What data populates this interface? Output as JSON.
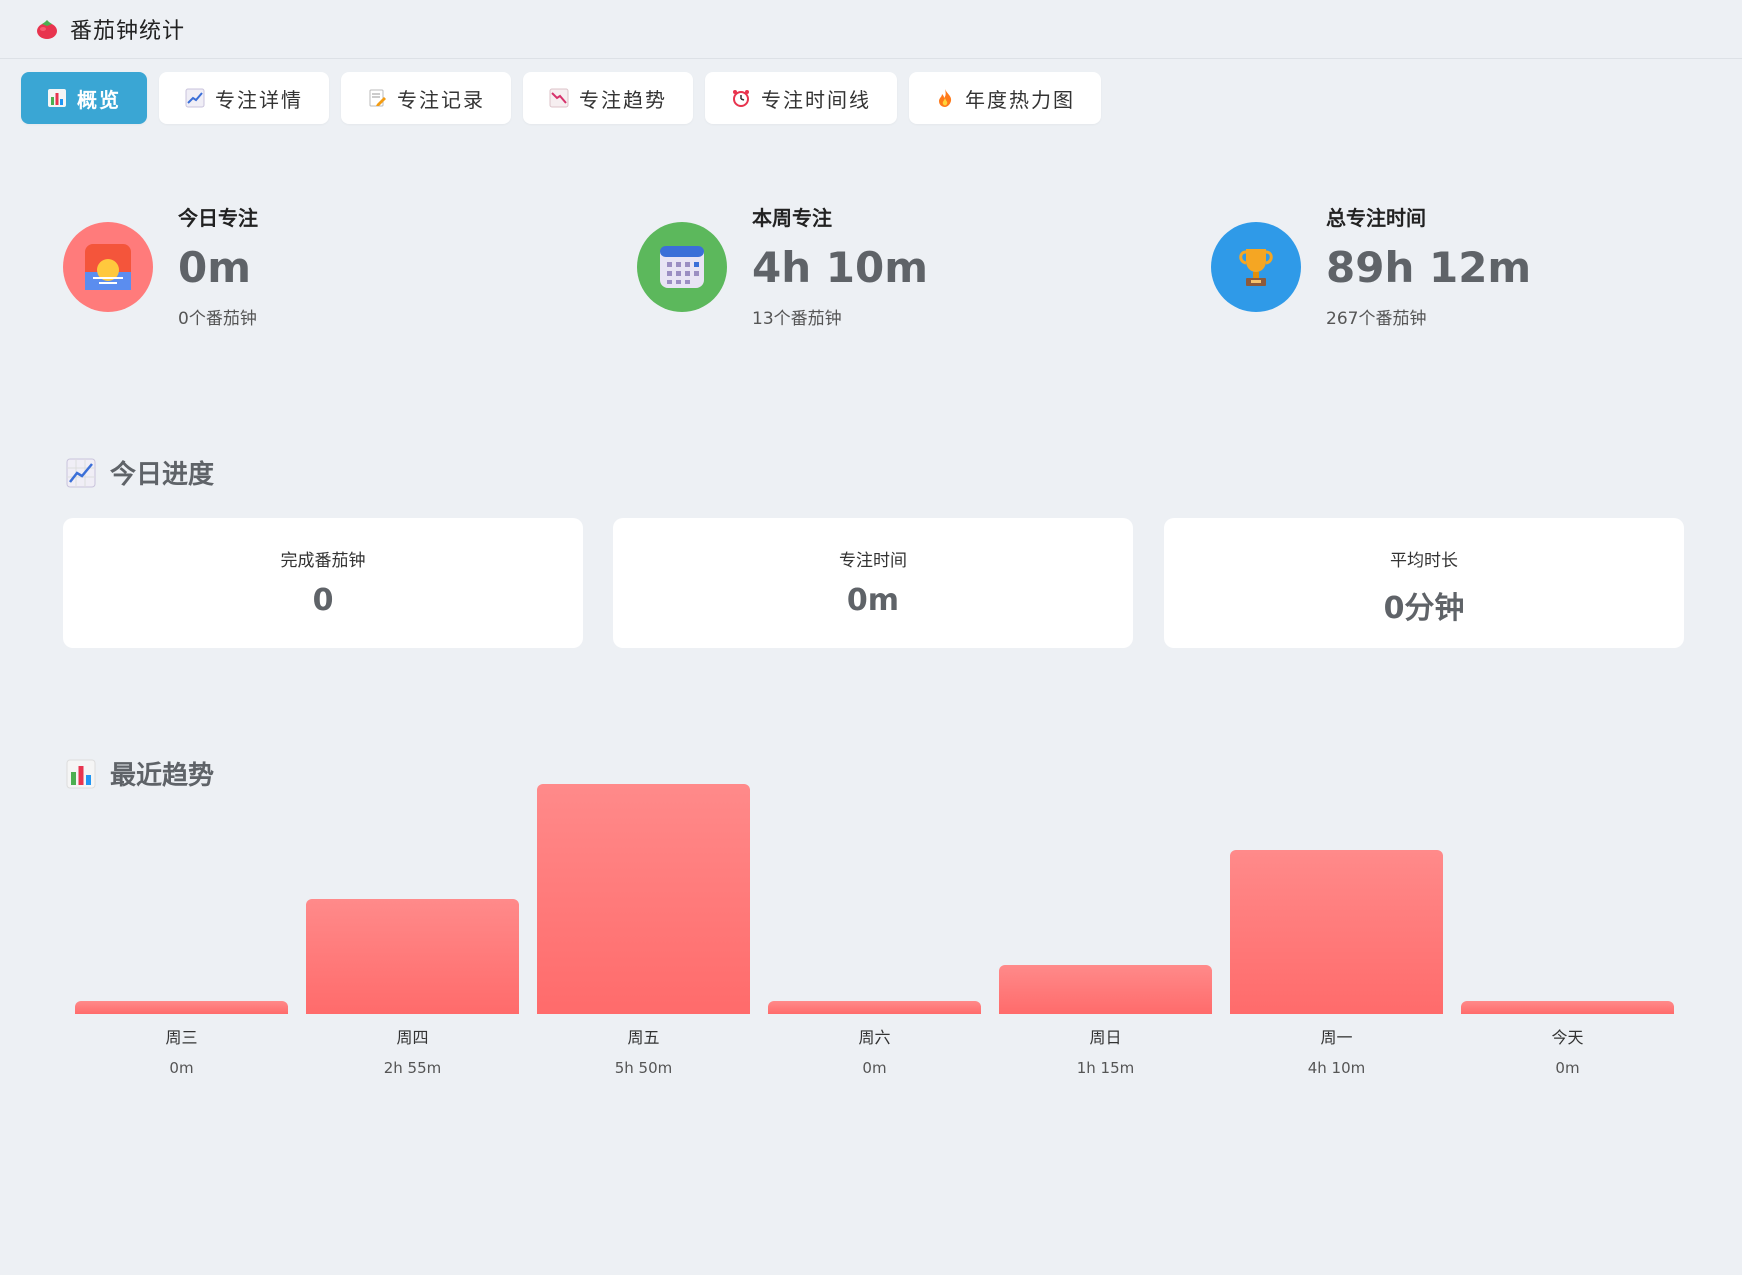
{
  "app": {
    "title": "番茄钟统计",
    "icon": "tomato-icon"
  },
  "tabs": [
    {
      "label": "概览",
      "icon": "bar-chart-icon",
      "active": true
    },
    {
      "label": "专注详情",
      "icon": "line-chart-icon",
      "active": false
    },
    {
      "label": "专注记录",
      "icon": "memo-icon",
      "active": false
    },
    {
      "label": "专注趋势",
      "icon": "chart-decreasing-icon",
      "active": false
    },
    {
      "label": "专注时间线",
      "icon": "alarm-clock-icon",
      "active": false
    },
    {
      "label": "年度热力图",
      "icon": "fire-icon",
      "active": false
    }
  ],
  "stats": [
    {
      "label": "今日专注",
      "value": "0m",
      "sub": "0个番茄钟",
      "icon": "sunrise-icon",
      "color": "#ff7b7b"
    },
    {
      "label": "本周专注",
      "value": "4h 10m",
      "sub": "13个番茄钟",
      "icon": "calendar-icon",
      "color": "#5cb85c"
    },
    {
      "label": "总专注时间",
      "value": "89h 12m",
      "sub": "267个番茄钟",
      "icon": "trophy-icon",
      "color": "#2f9ae8"
    }
  ],
  "today_section": {
    "title": "今日进度",
    "icon": "line-chart-icon"
  },
  "progress": [
    {
      "label": "完成番茄钟",
      "value": "0"
    },
    {
      "label": "专注时间",
      "value": "0m"
    },
    {
      "label": "平均时长",
      "value": "0分钟"
    }
  ],
  "trend_section": {
    "title": "最近趋势",
    "icon": "bar-chart-icon"
  },
  "chart_data": {
    "type": "bar",
    "categories": [
      "周三",
      "周四",
      "周五",
      "周六",
      "周日",
      "周一",
      "今天"
    ],
    "values": [
      0,
      175,
      350,
      0,
      75,
      250,
      0
    ],
    "value_labels": [
      "0m",
      "2h 55m",
      "5h 50m",
      "0m",
      "1h 15m",
      "4h 10m",
      "0m"
    ],
    "bar_color": "#ff6b6b"
  }
}
